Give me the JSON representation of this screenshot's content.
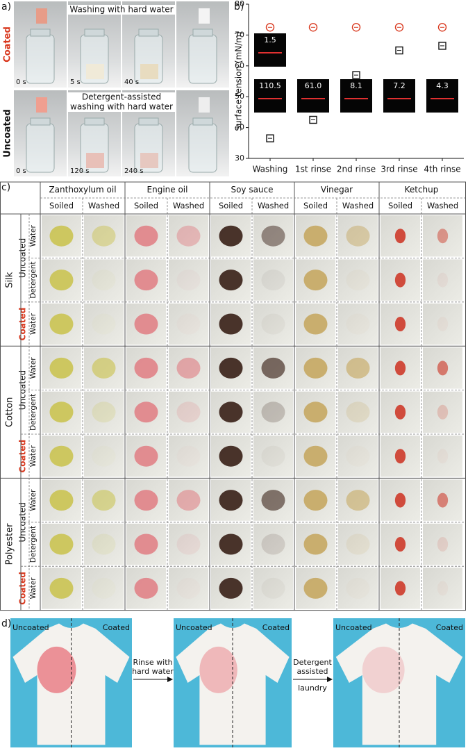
{
  "panels": {
    "a": "a)",
    "b": "b)",
    "c": "c)",
    "d": "d)"
  },
  "panel_a": {
    "rows": [
      {
        "label": "Coated",
        "title": [
          "Washing with hard water"
        ],
        "times": [
          "0 s",
          "5 s",
          "40 s"
        ]
      },
      {
        "label": "Uncoated",
        "title": [
          "Detergent-assisted",
          "washing with hard water"
        ],
        "times": [
          "0 s",
          "120 s",
          "240 s"
        ]
      }
    ]
  },
  "chart_data": {
    "type": "scatter",
    "ylabel": "Surface tension (mN/m)",
    "categories": [
      "Washing",
      "1st rinse",
      "2nd rinse",
      "3rd rinse",
      "4th rinse"
    ],
    "series": [
      {
        "color": "#d9381e",
        "marker": "circle",
        "values": [
          72.5,
          72.5,
          72.5,
          72.5,
          72.5
        ]
      },
      {
        "color": "#111111",
        "marker": "square",
        "values": [
          36.5,
          42.5,
          57,
          65,
          66.5
        ]
      }
    ],
    "annotations": [
      "1.5",
      "110.5",
      "61.0",
      "8.1",
      "7.2",
      "4.3"
    ],
    "ylim": [
      30,
      80
    ],
    "yticks": [
      30,
      40,
      50,
      60,
      70,
      80
    ]
  },
  "table": {
    "columns": [
      "Zanthoxylum oil",
      "Engine oil",
      "Soy sauce",
      "Vinegar",
      "Ketchup"
    ],
    "subcolumns": [
      "Soiled",
      "Washed"
    ],
    "fabrics": [
      "Silk",
      "Cotton",
      "Polyester"
    ],
    "groups": [
      "Uncoated",
      "Coated"
    ],
    "conditions": [
      "Water",
      "Detergent",
      "Water"
    ]
  },
  "panel_d": {
    "labels": [
      "Uncoated",
      "Coated"
    ],
    "steps": [
      [
        "Rinse with",
        "hard water"
      ],
      [
        "Detergent",
        "assisted",
        "laundry"
      ]
    ]
  }
}
